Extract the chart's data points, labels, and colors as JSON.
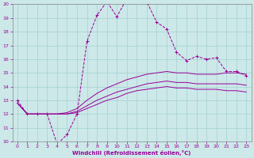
{
  "xlabel": "Windchill (Refroidissement éolien,°C)",
  "bg_color": "#cce8e8",
  "grid_color": "#aad4d4",
  "line_color": "#990099",
  "xlim": [
    -0.5,
    23.5
  ],
  "ylim": [
    10,
    20
  ],
  "xticks": [
    0,
    1,
    2,
    3,
    4,
    5,
    6,
    7,
    8,
    9,
    10,
    11,
    12,
    13,
    14,
    15,
    16,
    17,
    18,
    19,
    20,
    21,
    22,
    23
  ],
  "yticks": [
    10,
    11,
    12,
    13,
    14,
    15,
    16,
    17,
    18,
    19,
    20
  ],
  "curve1_x": [
    0,
    1,
    2,
    3,
    4,
    5,
    6,
    7,
    8,
    9,
    10,
    11,
    12,
    13,
    14,
    15,
    16,
    17,
    18,
    19,
    20,
    21,
    22,
    23
  ],
  "curve1_y": [
    13,
    12,
    12,
    12,
    9.8,
    10.5,
    12.0,
    17.3,
    19.2,
    20.2,
    19.1,
    20.4,
    20.2,
    20.2,
    18.7,
    18.2,
    16.5,
    15.9,
    16.2,
    16.0,
    16.1,
    15.1,
    15.1,
    14.8
  ],
  "curve2_x": [
    0,
    1,
    2,
    3,
    4,
    5,
    6,
    7,
    8,
    9,
    10,
    11,
    12,
    13,
    14,
    15,
    16,
    17,
    18,
    19,
    20,
    21,
    22,
    23
  ],
  "curve2_y": [
    12.8,
    12.0,
    12.0,
    12.0,
    12.0,
    12.1,
    12.4,
    13.0,
    13.5,
    13.9,
    14.2,
    14.5,
    14.7,
    14.9,
    15.0,
    15.1,
    15.0,
    15.0,
    14.9,
    14.9,
    14.9,
    15.0,
    15.0,
    14.9
  ],
  "curve3_x": [
    0,
    1,
    2,
    3,
    4,
    5,
    6,
    7,
    8,
    9,
    10,
    11,
    12,
    13,
    14,
    15,
    16,
    17,
    18,
    19,
    20,
    21,
    22,
    23
  ],
  "curve3_y": [
    12.8,
    12.0,
    12.0,
    12.0,
    12.0,
    12.0,
    12.2,
    12.6,
    13.0,
    13.3,
    13.6,
    13.8,
    14.0,
    14.2,
    14.3,
    14.4,
    14.3,
    14.3,
    14.2,
    14.2,
    14.2,
    14.2,
    14.2,
    14.1
  ],
  "curve4_x": [
    0,
    1,
    2,
    3,
    4,
    5,
    6,
    7,
    8,
    9,
    10,
    11,
    12,
    13,
    14,
    15,
    16,
    17,
    18,
    19,
    20,
    21,
    22,
    23
  ],
  "curve4_y": [
    12.8,
    12.0,
    12.0,
    12.0,
    12.0,
    12.0,
    12.1,
    12.4,
    12.7,
    13.0,
    13.2,
    13.5,
    13.7,
    13.8,
    13.9,
    14.0,
    13.9,
    13.9,
    13.8,
    13.8,
    13.8,
    13.7,
    13.7,
    13.6
  ]
}
